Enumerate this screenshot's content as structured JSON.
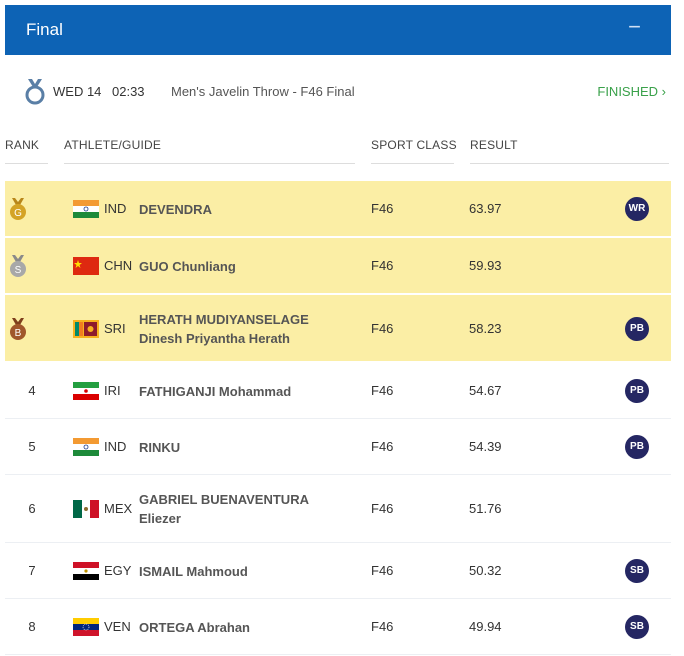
{
  "header": {
    "title": "Final",
    "collapse": "−"
  },
  "event": {
    "day": "WED 14",
    "time": "02:33",
    "name": "Men's Javelin Throw - F46 Final",
    "status": "FINISHED  ›"
  },
  "columns": {
    "rank": "RANK",
    "athlete": "ATHLETE/GUIDE",
    "sport_class": "SPORT CLASS",
    "result": "RESULT"
  },
  "colors": {
    "header_bg": "#0d63b5",
    "podium_bg": "#fbeea5",
    "finished": "#3aa14a",
    "badge_bg": "#252763"
  },
  "rows": [
    {
      "rank": "",
      "medal": "G",
      "noc": "IND",
      "athlete": [
        "DEVENDRA"
      ],
      "sport_class": "F46",
      "result": "63.97",
      "record": "WR"
    },
    {
      "rank": "",
      "medal": "S",
      "noc": "CHN",
      "athlete": [
        "GUO Chunliang"
      ],
      "sport_class": "F46",
      "result": "59.93",
      "record": ""
    },
    {
      "rank": "",
      "medal": "B",
      "noc": "SRI",
      "athlete": [
        "HERATH MUDIYANSELAGE",
        "Dinesh Priyantha Herath"
      ],
      "sport_class": "F46",
      "result": "58.23",
      "record": "PB"
    },
    {
      "rank": "4",
      "medal": "",
      "noc": "IRI",
      "athlete": [
        "FATHIGANJI Mohammad"
      ],
      "sport_class": "F46",
      "result": "54.67",
      "record": "PB"
    },
    {
      "rank": "5",
      "medal": "",
      "noc": "IND",
      "athlete": [
        "RINKU"
      ],
      "sport_class": "F46",
      "result": "54.39",
      "record": "PB"
    },
    {
      "rank": "6",
      "medal": "",
      "noc": "MEX",
      "athlete": [
        "GABRIEL BUENAVENTURA",
        "Eliezer"
      ],
      "sport_class": "F46",
      "result": "51.76",
      "record": ""
    },
    {
      "rank": "7",
      "medal": "",
      "noc": "EGY",
      "athlete": [
        "ISMAIL Mahmoud"
      ],
      "sport_class": "F46",
      "result": "50.32",
      "record": "SB"
    },
    {
      "rank": "8",
      "medal": "",
      "noc": "VEN",
      "athlete": [
        "ORTEGA Abrahan"
      ],
      "sport_class": "F46",
      "result": "49.94",
      "record": "SB"
    }
  ]
}
